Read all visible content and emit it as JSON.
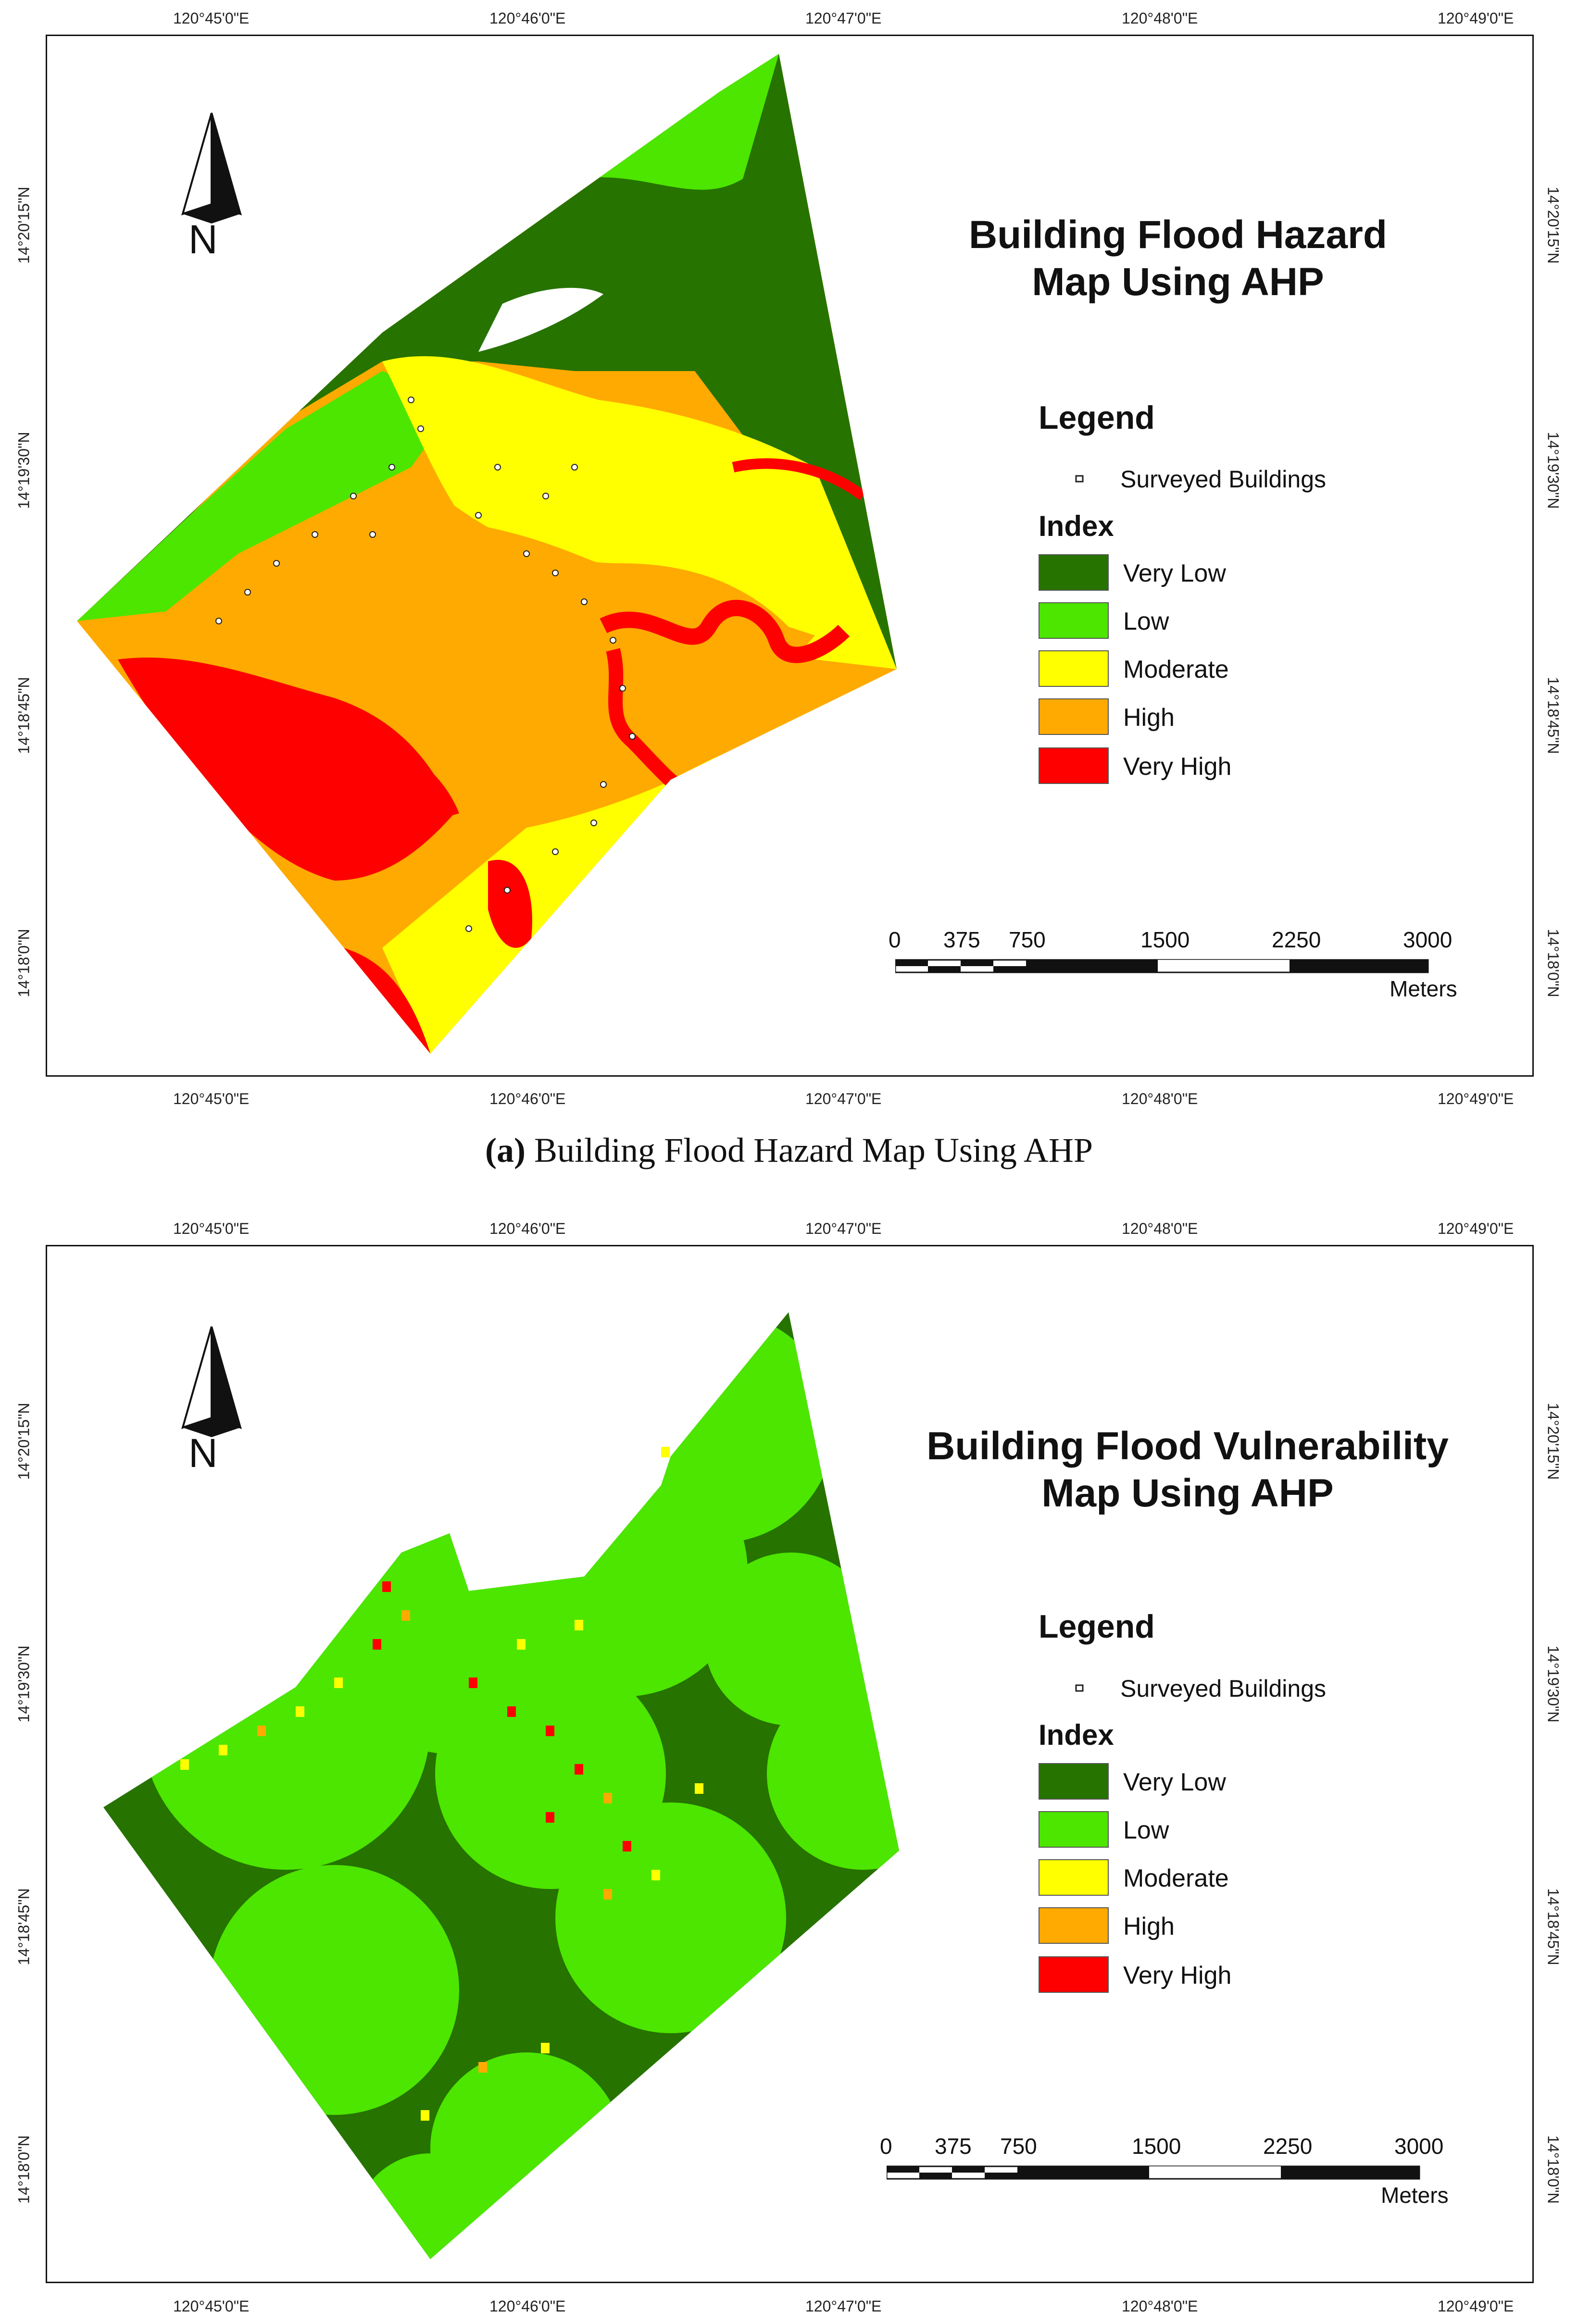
{
  "panel_a": {
    "title": "Building Flood Hazard Map Using AHP",
    "title_line1": "Building Flood Hazard",
    "title_line2": "Map Using AHP",
    "caption_prefix": "(a)",
    "caption_text": "Building Flood Hazard Map Using AHP"
  },
  "panel_b": {
    "title": "Building Flood Vulnerability Map Using AHP",
    "title_line1": "Building Flood Vulnerability",
    "title_line2": "Map Using AHP"
  },
  "legend": {
    "title": "Legend",
    "point_label": "Surveyed Buildings",
    "index_title": "Index",
    "classes": [
      {
        "label": "Very Low",
        "color": "#267300"
      },
      {
        "label": "Low",
        "color": "#4ce600"
      },
      {
        "label": "Moderate",
        "color": "#ffff00"
      },
      {
        "label": "High",
        "color": "#ffaa00"
      },
      {
        "label": "Very High",
        "color": "#ff0000"
      }
    ]
  },
  "north_arrow_label": "N",
  "longitude_labels": [
    "120°45'0\"E",
    "120°46'0\"E",
    "120°47'0\"E",
    "120°48'0\"E",
    "120°49'0\"E"
  ],
  "latitude_labels": [
    "14°20'15\"N",
    "14°19'30\"N",
    "14°18'45\"N",
    "14°18'0\"N"
  ],
  "scale_bar": {
    "ticks": [
      "0",
      "375",
      "750",
      "1500",
      "2250",
      "3000"
    ],
    "unit": "Meters"
  }
}
